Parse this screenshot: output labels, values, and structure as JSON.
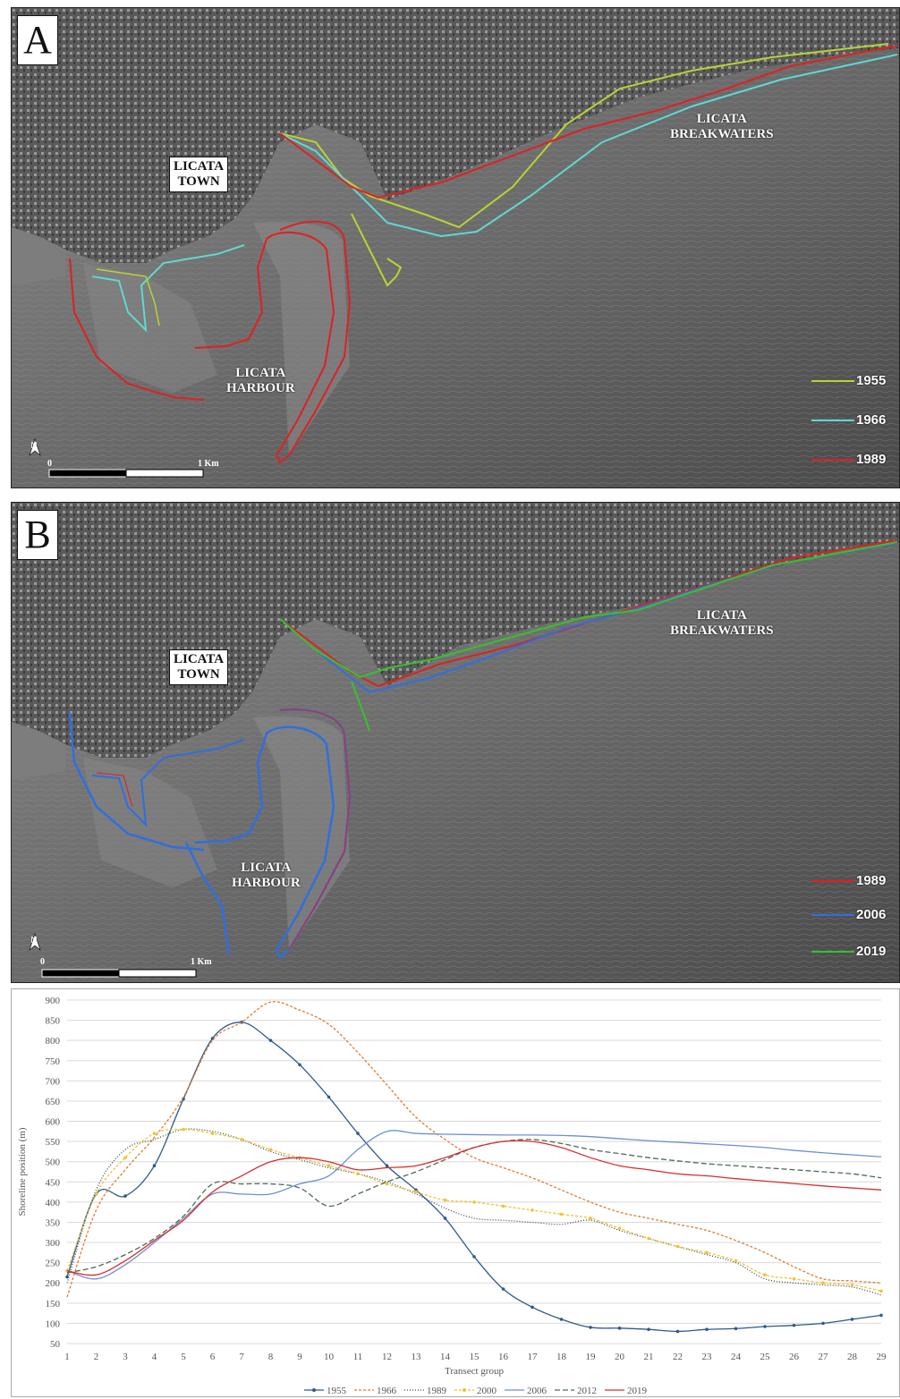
{
  "panel_a": {
    "letter": "A",
    "town_label": [
      "LICATA",
      "TOWN"
    ],
    "harbour_label": [
      "LICATA",
      "HARBOUR"
    ],
    "breakwaters_label": [
      "LICATA",
      "BREAKWATERS"
    ],
    "legend": [
      {
        "label": "1955",
        "color": "#b8d430"
      },
      {
        "label": "1966",
        "color": "#5fd9d2"
      },
      {
        "label": "1989",
        "color": "#e02020"
      }
    ],
    "north": "N",
    "scale_start": "0",
    "scale_end": "1 Km"
  },
  "panel_b": {
    "letter": "B",
    "town_label": [
      "LICATA",
      "TOWN"
    ],
    "harbour_label": [
      "LICATA",
      "HARBOUR"
    ],
    "breakwaters_label": [
      "LICATA",
      "BREAKWATERS"
    ],
    "legend": [
      {
        "label": "1989",
        "color": "#e02020"
      },
      {
        "label": "2006",
        "color": "#2f6fe0"
      },
      {
        "label": "2019",
        "color": "#35c22a"
      }
    ],
    "north": "N",
    "scale_start": "0",
    "scale_end": "1 Km"
  },
  "chart_data": {
    "type": "line",
    "title": "",
    "xlabel": "Transect group",
    "ylabel": "Shoreline position (m)",
    "ylim": [
      50,
      900
    ],
    "yticks": [
      50,
      100,
      150,
      200,
      250,
      300,
      350,
      400,
      450,
      500,
      550,
      600,
      650,
      700,
      750,
      800,
      850,
      900
    ],
    "x": [
      1,
      2,
      3,
      4,
      5,
      6,
      7,
      8,
      9,
      10,
      11,
      12,
      13,
      14,
      15,
      16,
      17,
      18,
      19,
      20,
      21,
      22,
      23,
      24,
      25,
      26,
      27,
      28,
      29
    ],
    "grid": true,
    "legend_position": "bottom",
    "series": [
      {
        "name": "1955",
        "color": "#2e5a8c",
        "dash": "",
        "markers": true,
        "values": [
          215,
          420,
          415,
          490,
          655,
          805,
          845,
          800,
          740,
          660,
          570,
          490,
          430,
          360,
          265,
          185,
          140,
          110,
          90,
          88,
          85,
          80,
          85,
          87,
          92,
          95,
          100,
          110,
          120
        ]
      },
      {
        "name": "1966",
        "color": "#e07b2c",
        "dash": "3,2",
        "markers": false,
        "values": [
          165,
          380,
          480,
          560,
          660,
          800,
          845,
          895,
          875,
          840,
          770,
          690,
          610,
          555,
          510,
          485,
          460,
          430,
          400,
          375,
          360,
          345,
          330,
          305,
          275,
          240,
          210,
          205,
          200
        ]
      },
      {
        "name": "1989",
        "color": "#3b4a5c",
        "dash": "1,2",
        "markers": false,
        "values": [
          200,
          430,
          530,
          555,
          580,
          575,
          555,
          525,
          505,
          485,
          470,
          450,
          420,
          385,
          360,
          355,
          350,
          345,
          355,
          330,
          310,
          290,
          270,
          250,
          210,
          200,
          195,
          190,
          170
        ]
      },
      {
        "name": "2000",
        "color": "#f2c230",
        "dash": "3,2",
        "markers": true,
        "values": [
          230,
          420,
          510,
          570,
          580,
          570,
          555,
          530,
          510,
          490,
          470,
          445,
          425,
          405,
          400,
          390,
          380,
          370,
          360,
          335,
          310,
          290,
          275,
          255,
          220,
          210,
          200,
          195,
          180
        ]
      },
      {
        "name": "2006",
        "color": "#6d8fd4",
        "dash": "",
        "markers": false,
        "values": [
          230,
          210,
          245,
          300,
          360,
          420,
          420,
          420,
          445,
          465,
          530,
          575,
          570,
          568,
          567,
          566,
          566,
          565,
          562,
          557,
          552,
          548,
          544,
          540,
          535,
          528,
          522,
          517,
          512
        ]
      },
      {
        "name": "2012",
        "color": "#4f6b50",
        "dash": "6,3",
        "markers": false,
        "values": [
          225,
          240,
          270,
          310,
          365,
          445,
          445,
          445,
          435,
          390,
          420,
          450,
          475,
          505,
          535,
          550,
          555,
          545,
          530,
          520,
          510,
          502,
          495,
          490,
          485,
          480,
          475,
          470,
          460
        ]
      },
      {
        "name": "2019",
        "color": "#d62e2e",
        "dash": "",
        "markers": false,
        "values": [
          230,
          220,
          255,
          305,
          355,
          425,
          465,
          500,
          510,
          500,
          480,
          485,
          490,
          510,
          535,
          550,
          550,
          535,
          510,
          490,
          480,
          470,
          465,
          458,
          452,
          446,
          440,
          435,
          430
        ]
      }
    ]
  }
}
